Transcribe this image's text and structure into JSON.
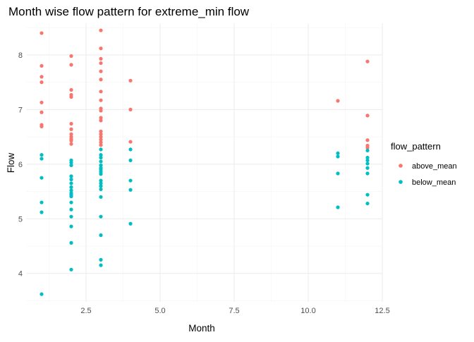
{
  "chart_data": {
    "type": "scatter",
    "title": "Month wise flow pattern for extreme_min flow",
    "xlabel": "Month",
    "ylabel": "Flow",
    "xlim": [
      0.5,
      12.5
    ],
    "ylim": [
      3.48,
      8.58
    ],
    "x_ticks": [
      2.5,
      5.0,
      7.5,
      10.0,
      12.5
    ],
    "x_tick_labels": [
      "2.5",
      "5.0",
      "7.5",
      "10.0",
      "12.5"
    ],
    "y_ticks": [
      4,
      5,
      6,
      7,
      8
    ],
    "y_tick_labels": [
      "4",
      "5",
      "6",
      "7",
      "8"
    ],
    "grid": true,
    "legend": {
      "title": "flow_pattern",
      "position": "right"
    },
    "series": [
      {
        "name": "above_mean",
        "color": "#F8766D",
        "points": [
          [
            1,
            8.4
          ],
          [
            1,
            7.8
          ],
          [
            1,
            7.6
          ],
          [
            1,
            7.5
          ],
          [
            1,
            7.13
          ],
          [
            1,
            6.95
          ],
          [
            1,
            6.72
          ],
          [
            1,
            6.69
          ],
          [
            2,
            7.98
          ],
          [
            2,
            7.82
          ],
          [
            2,
            7.36
          ],
          [
            2,
            7.27
          ],
          [
            2,
            7.23
          ],
          [
            2,
            6.74
          ],
          [
            2,
            6.64
          ],
          [
            2,
            6.55
          ],
          [
            2,
            6.5
          ],
          [
            2,
            6.46
          ],
          [
            2,
            6.43
          ],
          [
            2,
            6.37
          ],
          [
            3,
            8.45
          ],
          [
            3,
            8.12
          ],
          [
            3,
            7.93
          ],
          [
            3,
            7.85
          ],
          [
            3,
            7.7
          ],
          [
            3,
            7.55
          ],
          [
            3,
            7.33
          ],
          [
            3,
            7.17
          ],
          [
            3,
            7.02
          ],
          [
            3,
            6.98
          ],
          [
            3,
            6.85
          ],
          [
            3,
            6.8
          ],
          [
            3,
            6.6
          ],
          [
            3,
            6.55
          ],
          [
            3,
            6.5
          ],
          [
            3,
            6.45
          ],
          [
            3,
            6.4
          ],
          [
            3,
            6.35
          ],
          [
            4,
            7.53
          ],
          [
            4,
            7.0
          ],
          [
            4,
            6.41
          ],
          [
            11,
            7.16
          ],
          [
            12,
            7.88
          ],
          [
            12,
            6.89
          ],
          [
            12,
            6.44
          ],
          [
            12,
            6.34
          ],
          [
            12,
            6.3
          ]
        ]
      },
      {
        "name": "below_mean",
        "color": "#00BFC4",
        "points": [
          [
            1,
            6.17
          ],
          [
            1,
            6.1
          ],
          [
            1,
            5.75
          ],
          [
            1,
            5.3
          ],
          [
            1,
            5.12
          ],
          [
            1,
            3.62
          ],
          [
            2,
            6.07
          ],
          [
            2,
            6.03
          ],
          [
            2,
            5.98
          ],
          [
            2,
            5.78
          ],
          [
            2,
            5.72
          ],
          [
            2,
            5.65
          ],
          [
            2,
            5.58
          ],
          [
            2,
            5.52
          ],
          [
            2,
            5.47
          ],
          [
            2,
            5.44
          ],
          [
            2,
            5.41
          ],
          [
            2,
            5.3
          ],
          [
            2,
            5.17
          ],
          [
            2,
            5.04
          ],
          [
            2,
            4.86
          ],
          [
            2,
            4.56
          ],
          [
            2,
            4.07
          ],
          [
            3,
            6.27
          ],
          [
            3,
            6.17
          ],
          [
            3,
            6.12
          ],
          [
            3,
            6.05
          ],
          [
            3,
            5.98
          ],
          [
            3,
            5.93
          ],
          [
            3,
            5.9
          ],
          [
            3,
            5.86
          ],
          [
            3,
            5.82
          ],
          [
            3,
            5.7
          ],
          [
            3,
            5.65
          ],
          [
            3,
            5.6
          ],
          [
            3,
            5.54
          ],
          [
            3,
            5.4
          ],
          [
            3,
            5.04
          ],
          [
            3,
            4.7
          ],
          [
            3,
            4.25
          ],
          [
            3,
            4.15
          ],
          [
            4,
            6.27
          ],
          [
            4,
            6.07
          ],
          [
            4,
            5.7
          ],
          [
            4,
            5.53
          ],
          [
            4,
            4.91
          ],
          [
            11,
            6.2
          ],
          [
            11,
            6.14
          ],
          [
            11,
            5.83
          ],
          [
            11,
            5.21
          ],
          [
            12,
            6.25
          ],
          [
            12,
            6.12
          ],
          [
            12,
            6.07
          ],
          [
            12,
            6.01
          ],
          [
            12,
            5.93
          ],
          [
            12,
            5.83
          ],
          [
            12,
            5.44
          ],
          [
            12,
            5.28
          ]
        ]
      }
    ]
  }
}
